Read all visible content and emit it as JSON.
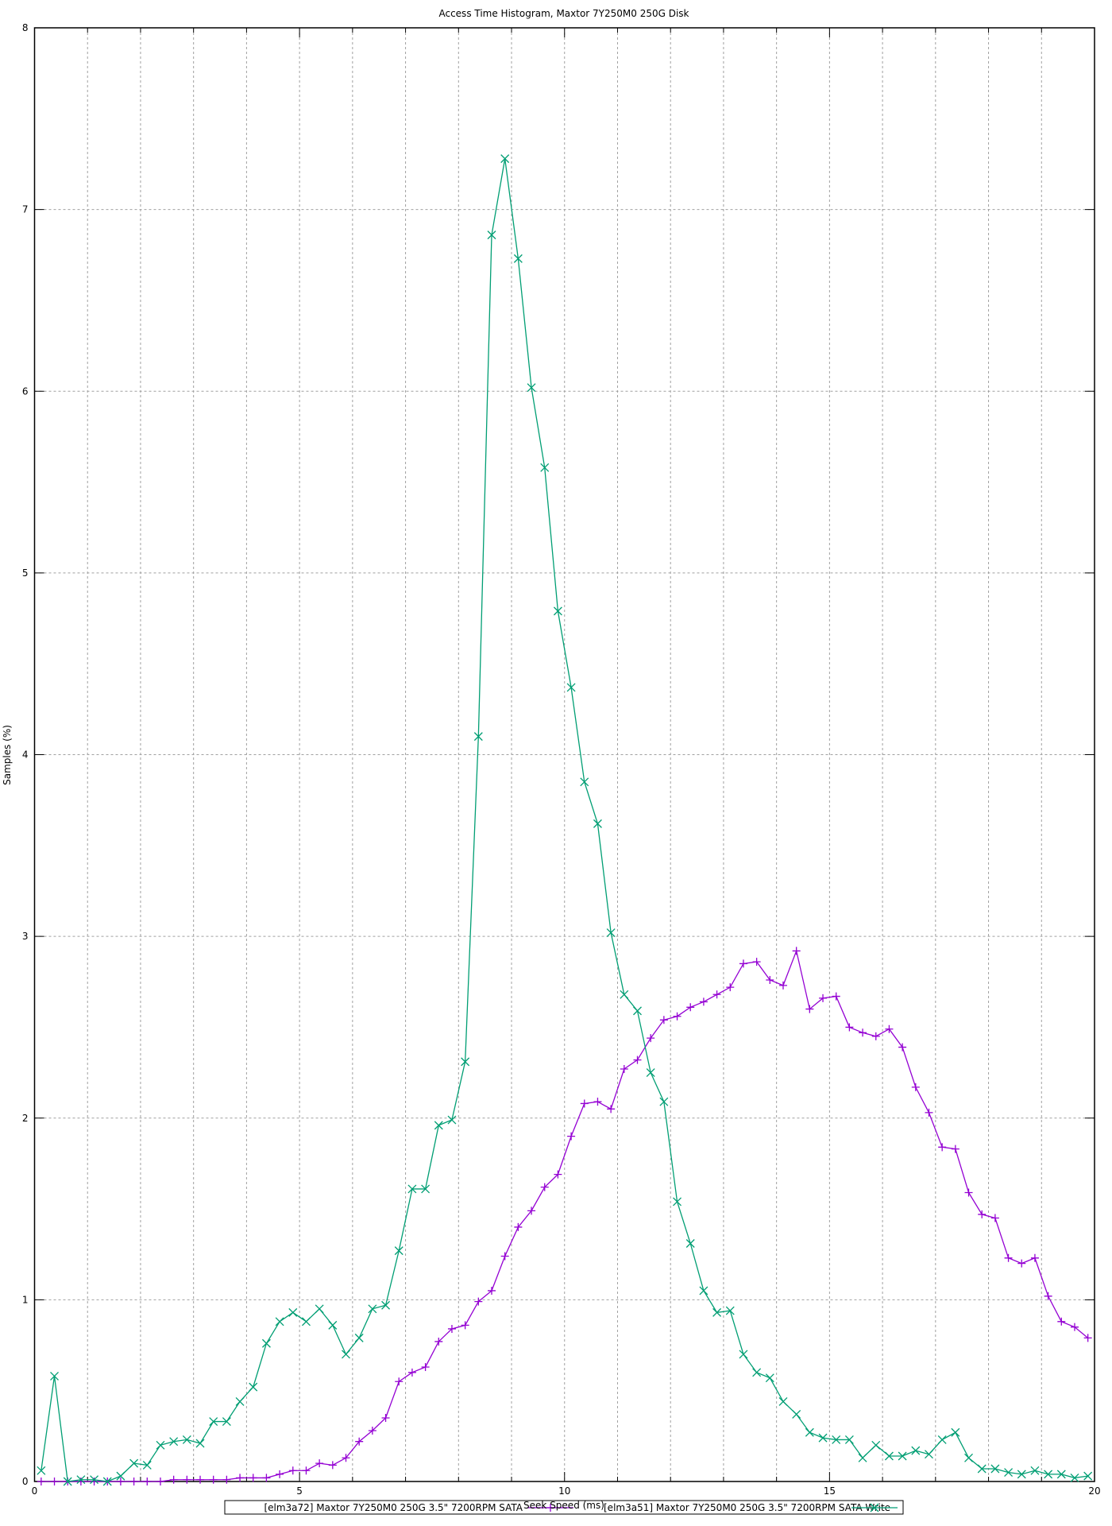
{
  "chart_data": {
    "type": "line",
    "title": "Access Time Histogram, Maxtor 7Y250M0 250G Disk",
    "xlabel": "Seek Speed (ms)",
    "ylabel": "Samples (%)",
    "xlim": [
      0,
      20
    ],
    "ylim": [
      0,
      8
    ],
    "x_ticks": [
      "0",
      "5",
      "10",
      "15",
      "20"
    ],
    "y_ticks": [
      "0",
      "1",
      "2",
      "3",
      "4",
      "5",
      "6",
      "7",
      "8"
    ],
    "grid": true,
    "legend_position": "bottom",
    "x": [
      0.125,
      0.375,
      0.625,
      0.875,
      1.125,
      1.375,
      1.625,
      1.875,
      2.125,
      2.375,
      2.625,
      2.875,
      3.125,
      3.375,
      3.625,
      3.875,
      4.125,
      4.375,
      4.625,
      4.875,
      5.125,
      5.375,
      5.625,
      5.875,
      6.125,
      6.375,
      6.625,
      6.875,
      7.125,
      7.375,
      7.625,
      7.875,
      8.125,
      8.375,
      8.625,
      8.875,
      9.125,
      9.375,
      9.625,
      9.875,
      10.125,
      10.375,
      10.625,
      10.875,
      11.125,
      11.375,
      11.625,
      11.875,
      12.125,
      12.375,
      12.625,
      12.875,
      13.125,
      13.375,
      13.625,
      13.875,
      14.125,
      14.375,
      14.625,
      14.875,
      15.125,
      15.375,
      15.625,
      15.875,
      16.125,
      16.375,
      16.625,
      16.875,
      17.125,
      17.375,
      17.625,
      17.875,
      18.125,
      18.375,
      18.625,
      18.875,
      19.125,
      19.375,
      19.625,
      19.875
    ],
    "series": [
      {
        "name": "[elm3a72] Maxtor 7Y250M0 250G 3.5\" 7200RPM SATA",
        "color": "#9400d3",
        "marker": "plus",
        "values": [
          0,
          0,
          0,
          0,
          0,
          0,
          0,
          0,
          0,
          0,
          0.01,
          0.01,
          0.01,
          0.01,
          0.01,
          0.02,
          0.02,
          0.02,
          0.04,
          0.06,
          0.06,
          0.1,
          0.09,
          0.13,
          0.22,
          0.28,
          0.35,
          0.55,
          0.6,
          0.63,
          0.77,
          0.84,
          0.86,
          0.99,
          1.05,
          1.24,
          1.4,
          1.49,
          1.62,
          1.69,
          1.9,
          2.08,
          2.09,
          2.05,
          2.27,
          2.32,
          2.44,
          2.54,
          2.56,
          2.61,
          2.64,
          2.68,
          2.72,
          2.85,
          2.86,
          2.76,
          2.73,
          2.92,
          2.6,
          2.66,
          2.67,
          2.5,
          2.47,
          2.45,
          2.49,
          2.39,
          2.17,
          2.03,
          1.84,
          1.83,
          1.59,
          1.47,
          1.45,
          1.23,
          1.2,
          1.23,
          1.02,
          0.88,
          0.85,
          0.79
        ]
      },
      {
        "name": "[elm3a51] Maxtor 7Y250M0 250G 3.5\" 7200RPM SATA Write",
        "color": "#009e73",
        "marker": "cross",
        "values": [
          0.06,
          0.58,
          0,
          0.01,
          0.01,
          0,
          0.03,
          0.1,
          0.09,
          0.2,
          0.22,
          0.23,
          0.21,
          0.33,
          0.33,
          0.44,
          0.52,
          0.76,
          0.88,
          0.93,
          0.88,
          0.95,
          0.86,
          0.7,
          0.79,
          0.95,
          0.97,
          1.27,
          1.61,
          1.61,
          1.96,
          1.99,
          2.31,
          4.1,
          6.86,
          7.28,
          6.73,
          6.02,
          5.58,
          4.79,
          4.37,
          3.85,
          3.62,
          3.02,
          2.68,
          2.59,
          2.25,
          2.09,
          1.54,
          1.31,
          1.05,
          0.93,
          0.94,
          0.7,
          0.6,
          0.57,
          0.44,
          0.37,
          0.27,
          0.24,
          0.23,
          0.23,
          0.13,
          0.2,
          0.14,
          0.14,
          0.17,
          0.15,
          0.23,
          0.27,
          0.13,
          0.07,
          0.07,
          0.05,
          0.04,
          0.06,
          0.04,
          0.04,
          0.02,
          0.03
        ]
      }
    ]
  }
}
